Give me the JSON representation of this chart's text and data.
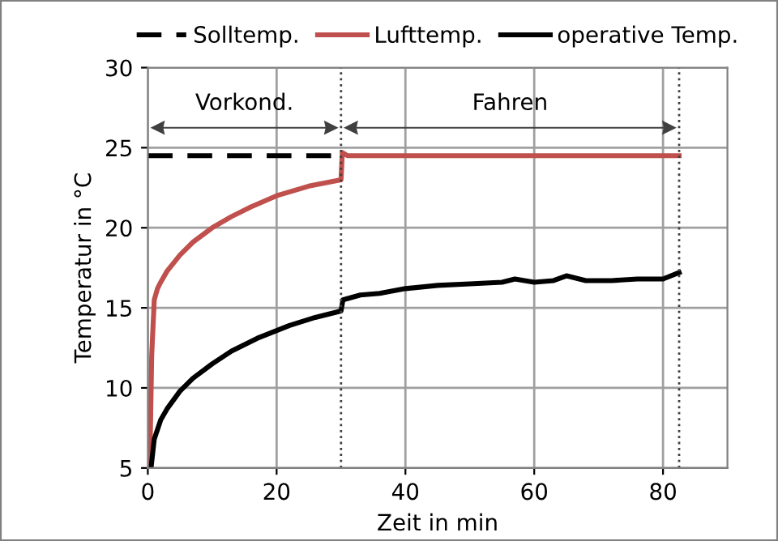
{
  "chart_data": {
    "type": "line",
    "xlabel": "Zeit in min",
    "ylabel": "Temperatur in °C",
    "xlim": [
      0,
      90
    ],
    "xticks": [
      0,
      20,
      40,
      60,
      80
    ],
    "ylim": [
      5,
      30
    ],
    "yticks": [
      5,
      10,
      15,
      20,
      25,
      30
    ],
    "grid": true,
    "legend": "top",
    "series": [
      {
        "name": "Solltemp.",
        "color": "#000000",
        "line_style": "dashed",
        "x": [
          0,
          30
        ],
        "values": [
          24.5,
          24.5
        ]
      },
      {
        "name": "Lufttemp.",
        "color": "#c0504d",
        "x": [
          0.3,
          0.6,
          1,
          1.5,
          2,
          3,
          5,
          7,
          10,
          13,
          16,
          20,
          25,
          30,
          30.2,
          31,
          35,
          40,
          50,
          60,
          70,
          80,
          82.5
        ],
        "values": [
          5,
          12,
          15.5,
          16.2,
          16.6,
          17.3,
          18.3,
          19.1,
          20,
          20.7,
          21.3,
          22,
          22.6,
          23,
          24.7,
          24.5,
          24.5,
          24.5,
          24.5,
          24.5,
          24.5,
          24.5,
          24.5
        ]
      },
      {
        "name": "operative Temp.",
        "color": "#000000",
        "x": [
          0.5,
          1,
          2,
          3,
          5,
          7,
          10,
          13,
          17,
          22,
          26,
          30,
          30.3,
          33,
          36,
          40,
          45,
          50,
          55,
          57,
          60,
          63,
          65,
          68,
          72,
          76,
          80,
          82.5
        ],
        "values": [
          5,
          6.8,
          8,
          8.7,
          9.8,
          10.6,
          11.5,
          12.3,
          13.1,
          13.9,
          14.4,
          14.8,
          15.5,
          15.8,
          15.9,
          16.2,
          16.4,
          16.5,
          16.6,
          16.8,
          16.6,
          16.7,
          17,
          16.7,
          16.7,
          16.8,
          16.8,
          17.2
        ]
      }
    ],
    "ref_lines": [
      {
        "axis": "x",
        "value": 30,
        "color": "#404040",
        "line_style": "dotted"
      },
      {
        "axis": "x",
        "value": 82.5,
        "color": "#404040",
        "line_style": "dotted"
      }
    ],
    "annotations": [
      "Vorkond.",
      "Fahren"
    ]
  }
}
